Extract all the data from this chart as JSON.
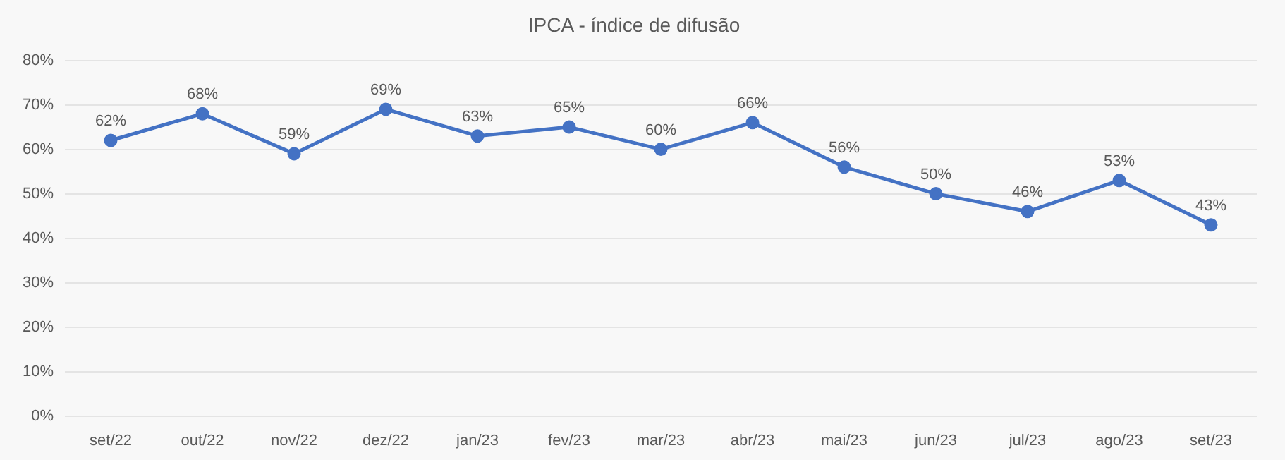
{
  "chart_data": {
    "type": "line",
    "title": "IPCA - índice de difusão",
    "categories": [
      "set/22",
      "out/22",
      "nov/22",
      "dez/22",
      "jan/23",
      "fev/23",
      "mar/23",
      "abr/23",
      "mai/23",
      "jun/23",
      "jul/23",
      "ago/23",
      "set/23"
    ],
    "series": [
      {
        "color": "#4472c4",
        "values": [
          62,
          68,
          59,
          69,
          63,
          65,
          60,
          66,
          56,
          50,
          46,
          53,
          43
        ],
        "value_labels": [
          "62%",
          "68%",
          "59%",
          "69%",
          "63%",
          "65%",
          "60%",
          "66%",
          "56%",
          "50%",
          "46%",
          "53%",
          "43%"
        ]
      }
    ],
    "ylim": [
      0,
      80
    ],
    "yticks": [
      {
        "value": 0,
        "label": "0%"
      },
      {
        "value": 10,
        "label": "10%"
      },
      {
        "value": 20,
        "label": "20%"
      },
      {
        "value": 30,
        "label": "30%"
      },
      {
        "value": 40,
        "label": "40%"
      },
      {
        "value": 50,
        "label": "50%"
      },
      {
        "value": 60,
        "label": "60%"
      },
      {
        "value": 70,
        "label": "70%"
      },
      {
        "value": 80,
        "label": "80%"
      }
    ],
    "grid": "y",
    "marker": "circle",
    "line_style": "solid",
    "legend": false
  }
}
